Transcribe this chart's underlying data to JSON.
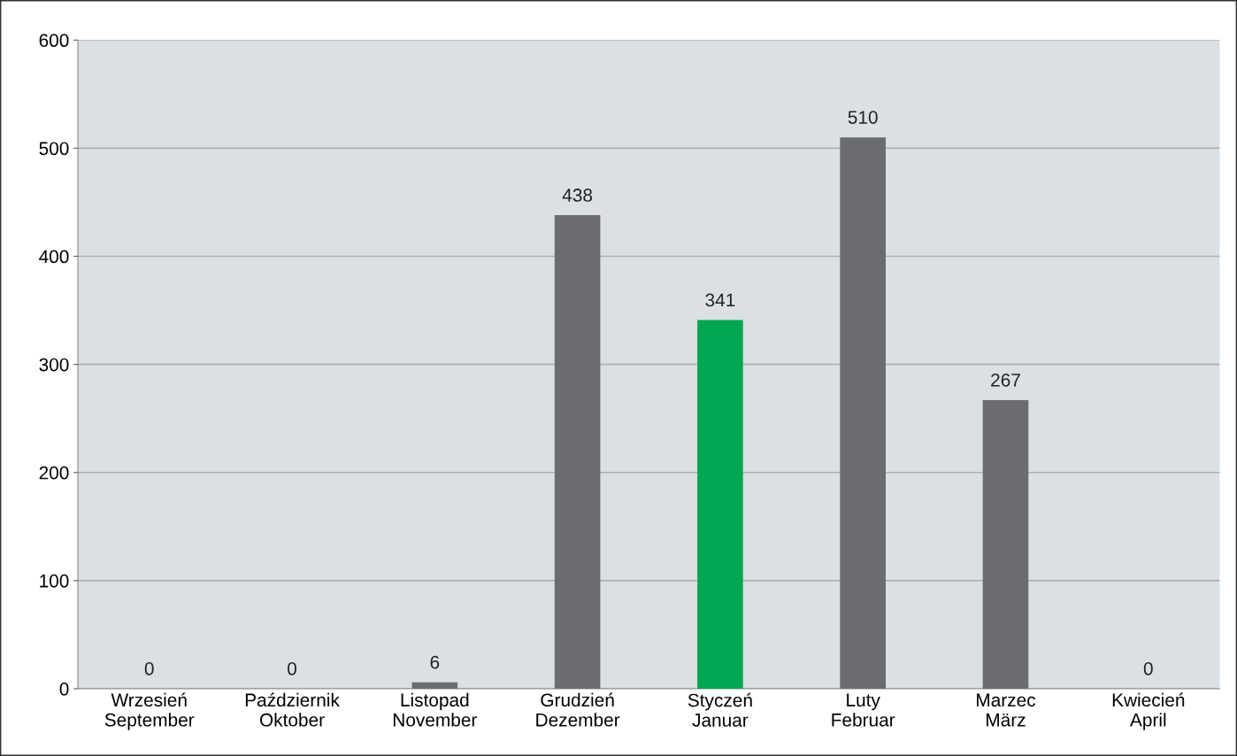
{
  "chart_data": {
    "type": "bar",
    "categories": [
      "Wrzesień\nSeptember",
      "Październik\nOktober",
      "Listopad\nNovember",
      "Grudzień\nDezember",
      "Styczeń\nJanuar",
      "Luty\nFebruar",
      "Marzec\nMärz",
      "Kwiecień\nApril"
    ],
    "values": [
      0,
      0,
      6,
      438,
      341,
      510,
      267,
      0
    ],
    "colors": [
      "#6b6c6f",
      "#6b6c6f",
      "#6b6c6f",
      "#6b6c6f",
      "#00a650",
      "#6b6c6f",
      "#6b6c6f",
      "#6b6c6f"
    ],
    "ylim": [
      0,
      600
    ],
    "yticks": [
      0,
      100,
      200,
      300,
      400,
      500,
      600
    ],
    "grid": "y",
    "data_labels": true
  }
}
